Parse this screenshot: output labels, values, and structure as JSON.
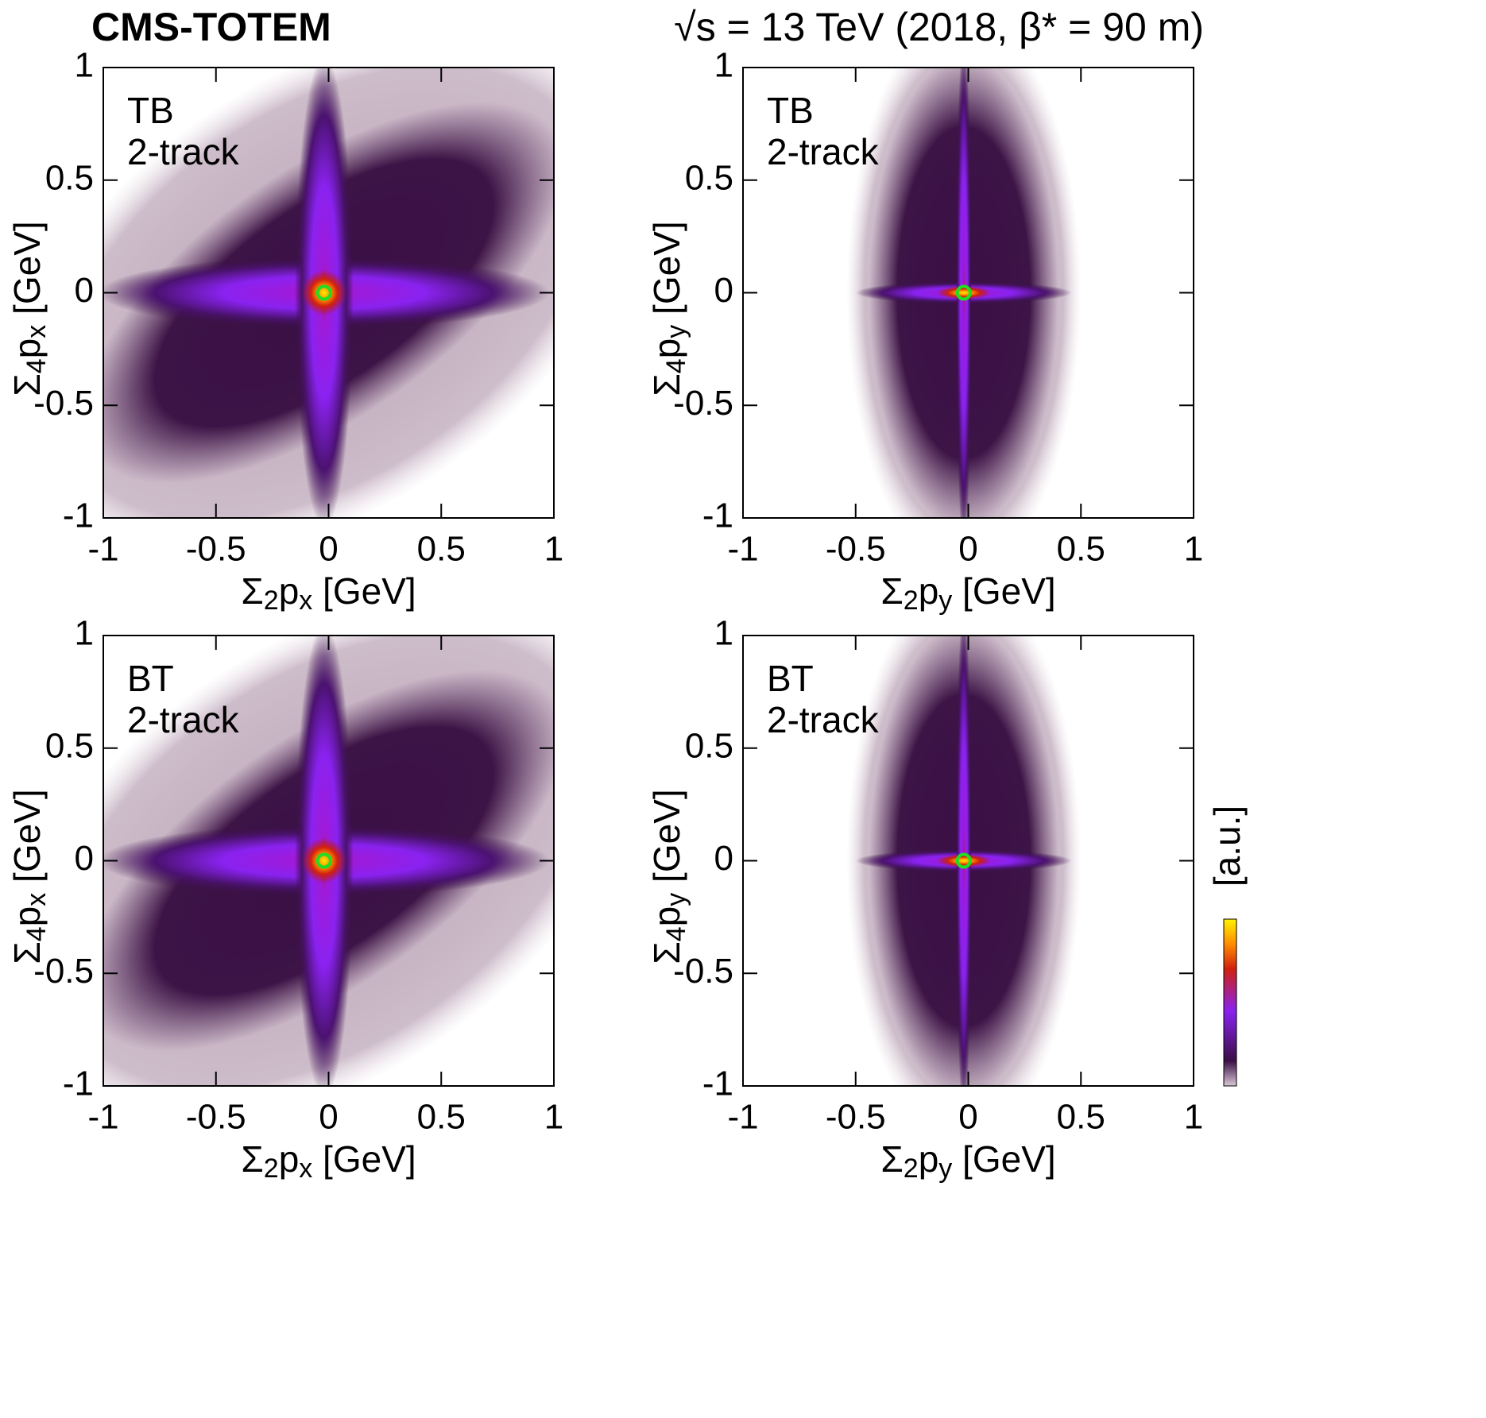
{
  "experiment": "CMS-TOTEM",
  "energy_label": "√s = 13 TeV (2018, β* = 90 m)",
  "z_label": "[a.u.]",
  "chart_data": [
    {
      "type": "heatmap",
      "annotation": [
        "TB",
        "2-track"
      ],
      "xlabel": "Σ2px [GeV]",
      "ylabel": "Σ4px [GeV]",
      "xlim": [
        -1,
        1
      ],
      "ylim": [
        -1,
        1
      ],
      "xticks": [
        -1,
        -0.5,
        0,
        0.5,
        1
      ],
      "yticks": [
        -1,
        -0.5,
        0,
        0.5,
        1
      ],
      "x": [
        -0.02
      ],
      "y": [
        0
      ],
      "marker_color": "#22dd22"
    },
    {
      "type": "heatmap",
      "annotation": [
        "TB",
        "2-track"
      ],
      "xlabel": "Σ2py [GeV]",
      "ylabel": "Σ4py [GeV]",
      "xlim": [
        -1,
        1
      ],
      "ylim": [
        -1,
        1
      ],
      "xticks": [
        -1,
        -0.5,
        0,
        0.5,
        1
      ],
      "yticks": [
        -1,
        -0.5,
        0,
        0.5,
        1
      ],
      "x": [
        -0.02
      ],
      "y": [
        0
      ],
      "marker_color": "#22dd22"
    },
    {
      "type": "heatmap",
      "annotation": [
        "BT",
        "2-track"
      ],
      "xlabel": "Σ2px [GeV]",
      "ylabel": "Σ4px [GeV]",
      "xlim": [
        -1,
        1
      ],
      "ylim": [
        -1,
        1
      ],
      "xticks": [
        -1,
        -0.5,
        0,
        0.5,
        1
      ],
      "yticks": [
        -1,
        -0.5,
        0,
        0.5,
        1
      ],
      "x": [
        -0.02
      ],
      "y": [
        0
      ],
      "marker_color": "#22dd22"
    },
    {
      "type": "heatmap",
      "annotation": [
        "BT",
        "2-track"
      ],
      "xlabel": "Σ2py [GeV]",
      "ylabel": "Σ4py [GeV]",
      "xlim": [
        -1,
        1
      ],
      "ylim": [
        -1,
        1
      ],
      "xticks": [
        -1,
        -0.5,
        0,
        0.5,
        1
      ],
      "yticks": [
        -1,
        -0.5,
        0,
        0.5,
        1
      ],
      "x": [
        -0.02
      ],
      "y": [
        0
      ],
      "marker_color": "#22dd22"
    }
  ]
}
